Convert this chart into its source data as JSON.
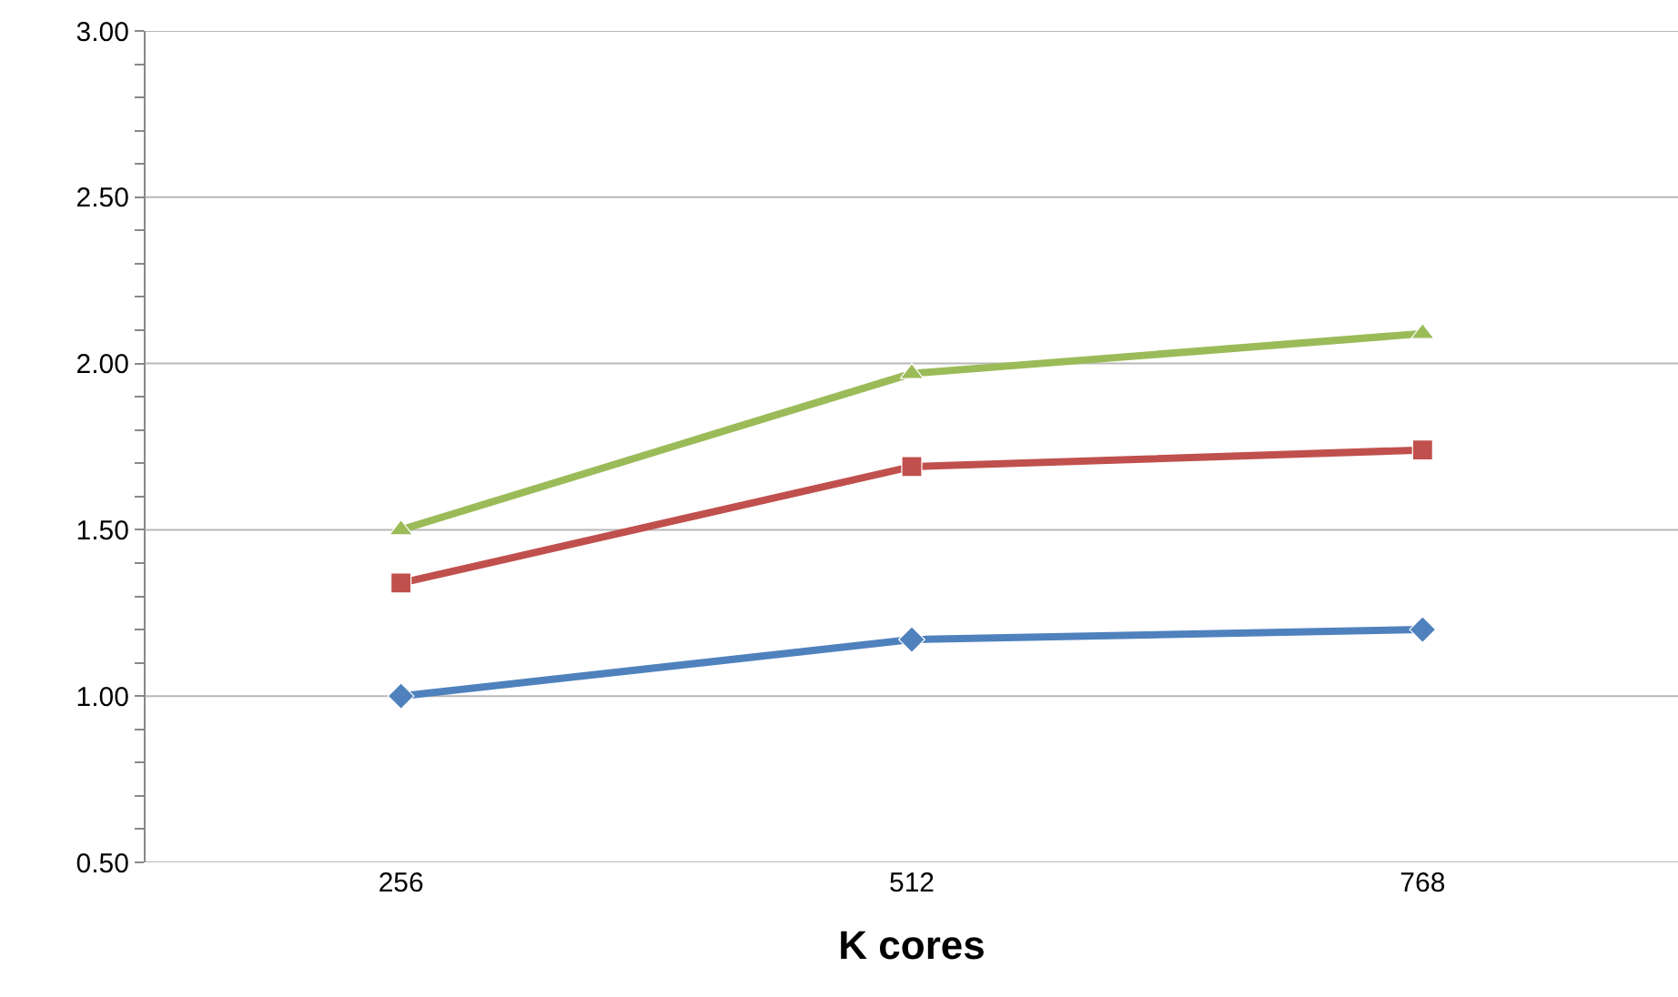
{
  "chart_data": {
    "type": "line",
    "xlabel": "K cores",
    "categories": [
      "256",
      "512",
      "768"
    ],
    "series": [
      {
        "color": "#4f81bd",
        "marker": "diamond",
        "values": [
          1.0,
          1.17,
          1.2
        ]
      },
      {
        "color": "#c0504d",
        "marker": "square",
        "values": [
          1.34,
          1.69,
          1.74
        ]
      },
      {
        "color": "#9bbb59",
        "marker": "triangle",
        "values": [
          1.5,
          1.97,
          2.09
        ]
      }
    ],
    "ylim": [
      0.5,
      3.0
    ],
    "yticks": [
      {
        "value": 0.5,
        "label": "0.50"
      },
      {
        "value": 0.6,
        "label": null
      },
      {
        "value": 0.7,
        "label": null
      },
      {
        "value": 0.8,
        "label": null
      },
      {
        "value": 0.9,
        "label": null
      },
      {
        "value": 1.0,
        "label": "1.00"
      },
      {
        "value": 1.1,
        "label": null
      },
      {
        "value": 1.2,
        "label": null
      },
      {
        "value": 1.3,
        "label": null
      },
      {
        "value": 1.4,
        "label": null
      },
      {
        "value": 1.5,
        "label": "1.50"
      },
      {
        "value": 1.6,
        "label": null
      },
      {
        "value": 1.7,
        "label": null
      },
      {
        "value": 1.8,
        "label": null
      },
      {
        "value": 1.9,
        "label": null
      },
      {
        "value": 2.0,
        "label": "2.00"
      },
      {
        "value": 2.1,
        "label": null
      },
      {
        "value": 2.2,
        "label": null
      },
      {
        "value": 2.3,
        "label": null
      },
      {
        "value": 2.4,
        "label": null
      },
      {
        "value": 2.5,
        "label": "2.50"
      },
      {
        "value": 2.6,
        "label": null
      },
      {
        "value": 2.7,
        "label": null
      },
      {
        "value": 2.8,
        "label": null
      },
      {
        "value": 2.9,
        "label": null
      },
      {
        "value": 3.0,
        "label": "3.00"
      }
    ],
    "grid": "y",
    "line_style": "solid"
  }
}
